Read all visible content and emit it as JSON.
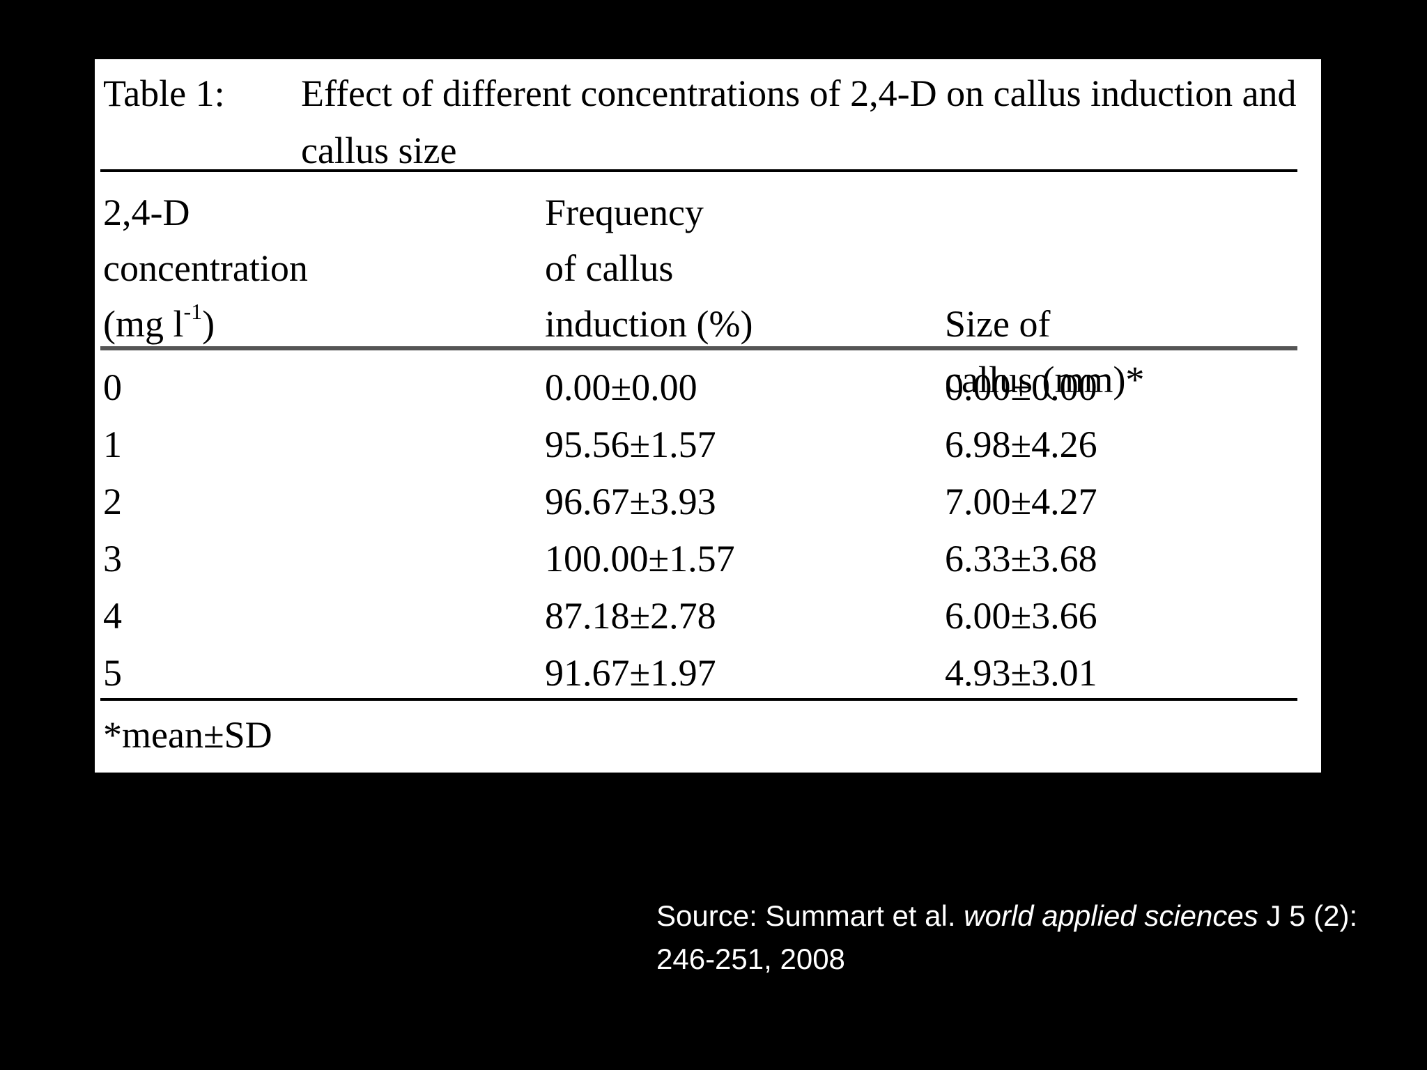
{
  "table": {
    "label": "Table 1:",
    "title": "Effect of different concentrations of 2,4-D on callus induction and callus size",
    "headers": {
      "col1": [
        "2,4-D",
        "concentration",
        "(mg l",
        "-1",
        ")"
      ],
      "col2": [
        "Frequency",
        "of callus",
        "induction (%)"
      ],
      "col3": [
        "Size of",
        "callus (mm)*"
      ]
    },
    "rows": [
      {
        "concentration": "0",
        "frequency": "0.00±0.00",
        "size": "0.00±0.00"
      },
      {
        "concentration": "1",
        "frequency": "95.56±1.57",
        "size": "6.98±4.26"
      },
      {
        "concentration": "2",
        "frequency": "96.67±3.93",
        "size": "7.00±4.27"
      },
      {
        "concentration": "3",
        "frequency": "100.00±1.57",
        "size": "6.33±3.68"
      },
      {
        "concentration": "4",
        "frequency": "87.18±2.78",
        "size": "6.00±3.66"
      },
      {
        "concentration": "5",
        "frequency": "91.67±1.97",
        "size": "4.93±3.01"
      }
    ],
    "footnote": "*mean±SD"
  },
  "source": {
    "prefix": "Source: Summart et al.",
    "journal": "world applied sciences",
    "suffix": "J 5 (2): 246-251, 2008"
  }
}
